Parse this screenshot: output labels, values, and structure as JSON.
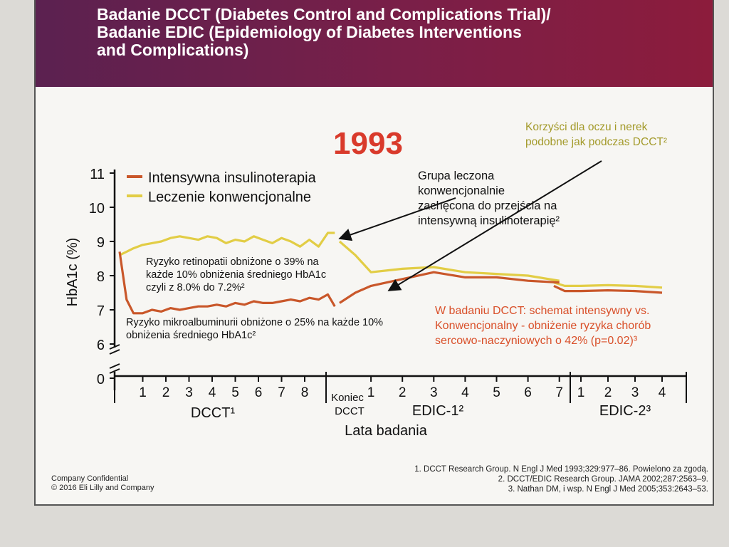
{
  "header": {
    "title": "Badanie DCCT (Diabetes Control and Complications Trial)/\nBadanie EDIC (Epidemiology of Diabetes Interventions\nand Complications)"
  },
  "colors": {
    "header_bg": "#6b1f4a",
    "intensive": "#c9572a",
    "conventional": "#e2cd45",
    "year_red": "#d93a2b",
    "olive_text": "#a39a2a",
    "orange_text": "#d9502a"
  },
  "chart_data": {
    "type": "line",
    "ylabel": "HbA1c (%)",
    "xlabel": "Lata badania",
    "y_ticks": [
      "11",
      "10",
      "9",
      "8",
      "7",
      "6",
      "0"
    ],
    "ylim": [
      6,
      11
    ],
    "axis_break": true,
    "segments": [
      {
        "label": "DCCT¹",
        "ticks": [
          "1",
          "2",
          "3",
          "4",
          "5",
          "6",
          "7",
          "8"
        ]
      },
      {
        "label": "EDIC-1²",
        "end_label_line1": "Koniec",
        "end_label_line2": "DCCT",
        "ticks": [
          "1",
          "2",
          "3",
          "4",
          "5",
          "6",
          "7"
        ]
      },
      {
        "label": "EDIC-2³",
        "ticks": [
          "1",
          "2",
          "3",
          "4"
        ]
      }
    ],
    "legend": [
      {
        "name": "Intensywna insulinoterapia",
        "color": "#c9572a"
      },
      {
        "name": "Leczenie konwencjonalne",
        "color": "#e2cd45"
      }
    ],
    "series": [
      {
        "name": "Leczenie konwencjonalne",
        "dcct": [
          [
            0,
            8.6
          ],
          [
            0.3,
            8.7
          ],
          [
            0.6,
            8.8
          ],
          [
            1,
            8.9
          ],
          [
            1.4,
            8.95
          ],
          [
            1.8,
            9.0
          ],
          [
            2.2,
            9.1
          ],
          [
            2.6,
            9.15
          ],
          [
            3,
            9.1
          ],
          [
            3.4,
            9.05
          ],
          [
            3.8,
            9.15
          ],
          [
            4.2,
            9.1
          ],
          [
            4.6,
            8.95
          ],
          [
            5,
            9.05
          ],
          [
            5.4,
            9.0
          ],
          [
            5.8,
            9.15
          ],
          [
            6.2,
            9.05
          ],
          [
            6.6,
            8.95
          ],
          [
            7,
            9.1
          ],
          [
            7.4,
            9.0
          ],
          [
            7.8,
            8.85
          ],
          [
            8.2,
            9.05
          ],
          [
            8.6,
            8.85
          ],
          [
            9.0,
            9.25
          ],
          [
            9.3,
            9.25
          ]
        ],
        "edic1": [
          [
            0,
            9.0
          ],
          [
            0.5,
            8.6
          ],
          [
            1,
            8.1
          ],
          [
            2,
            8.2
          ],
          [
            3,
            8.25
          ],
          [
            4,
            8.1
          ],
          [
            5,
            8.05
          ],
          [
            6,
            8.0
          ],
          [
            7,
            7.85
          ]
        ],
        "edic2": [
          [
            0,
            7.8
          ],
          [
            0.4,
            7.7
          ],
          [
            1,
            7.7
          ],
          [
            2,
            7.72
          ],
          [
            3,
            7.7
          ],
          [
            4,
            7.65
          ]
        ]
      },
      {
        "name": "Intensywna insulinoterapia",
        "dcct": [
          [
            0,
            8.7
          ],
          [
            0.3,
            7.3
          ],
          [
            0.6,
            6.9
          ],
          [
            1,
            6.9
          ],
          [
            1.4,
            7.0
          ],
          [
            1.8,
            6.95
          ],
          [
            2.2,
            7.05
          ],
          [
            2.6,
            7.0
          ],
          [
            3,
            7.05
          ],
          [
            3.4,
            7.1
          ],
          [
            3.8,
            7.1
          ],
          [
            4.2,
            7.15
          ],
          [
            4.6,
            7.1
          ],
          [
            5,
            7.2
          ],
          [
            5.4,
            7.15
          ],
          [
            5.8,
            7.25
          ],
          [
            6.2,
            7.2
          ],
          [
            6.6,
            7.2
          ],
          [
            7,
            7.25
          ],
          [
            7.4,
            7.3
          ],
          [
            7.8,
            7.25
          ],
          [
            8.2,
            7.35
          ],
          [
            8.6,
            7.3
          ],
          [
            9.0,
            7.45
          ],
          [
            9.3,
            7.1
          ]
        ],
        "edic1": [
          [
            0,
            7.2
          ],
          [
            0.5,
            7.5
          ],
          [
            1,
            7.7
          ],
          [
            2,
            7.9
          ],
          [
            3,
            8.1
          ],
          [
            4,
            7.95
          ],
          [
            5,
            7.95
          ],
          [
            6,
            7.85
          ],
          [
            7,
            7.8
          ]
        ],
        "edic2": [
          [
            0,
            7.7
          ],
          [
            0.4,
            7.55
          ],
          [
            1,
            7.55
          ],
          [
            2,
            7.57
          ],
          [
            3,
            7.55
          ],
          [
            4,
            7.5
          ]
        ]
      }
    ]
  },
  "annotations": {
    "year": "1993",
    "arrow_text_1": "Grupa leczona\nkonwencjonalnie\nzachęcona do przejścia na\nintensywną insulinoterapię²",
    "olive_text": "Korzyści dla oczu i nerek\npodobne jak podczas DCCT²",
    "retinopathy_text": "Ryzyko retinopatii obniżone o 39% na\nkażde 10% obniżenia średniego HbA1c\nczyli z 8.0% do 7.2%²",
    "microalb_text": "Ryzyko mikroalbuminurii obniżone o 25% na każde 10%\nobniżenia średniego HbA1c²",
    "orange_text": "W badaniu DCCT: schemat intensywny vs.\nKonwencjonalny -  obniżenie ryzyka chorób\nsercowo-naczyniowych o 42% (p=0.02)³"
  },
  "footer": {
    "company": "Company Confidential\n© 2016 Eli Lilly and Company",
    "references": "1. DCCT Research Group. N Engl J Med 1993;329:977–86. Powielono za zgodą.\n2. DCCT/EDIC Research Group. JAMA 2002;287:2563–9.\n3. Nathan DM, i wsp. N Engl J Med 2005;353:2643–53."
  }
}
